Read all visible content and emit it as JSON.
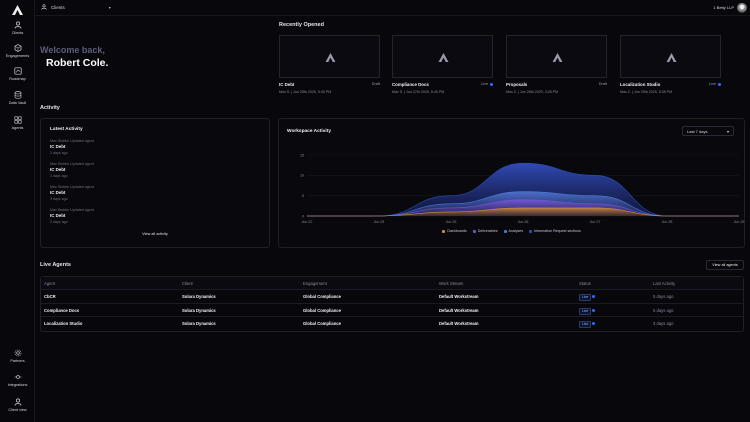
{
  "sidebar": {
    "items": [
      {
        "label": "Clients",
        "icon": "user-icon"
      },
      {
        "label": "Engagements",
        "icon": "hexagon-icon"
      },
      {
        "label": "Roadmap",
        "icon": "roadmap-icon"
      },
      {
        "label": "Data Vault",
        "icon": "database-icon"
      },
      {
        "label": "Agents",
        "icon": "grid-icon"
      }
    ],
    "bottom_items": [
      {
        "label": "Partners",
        "icon": "gear-icon"
      },
      {
        "label": "Integrations",
        "icon": "integration-icon"
      },
      {
        "label": "Client view",
        "icon": "user-icon"
      }
    ]
  },
  "topbar": {
    "client_select": "Clients",
    "user_name": "1 Betty LLP"
  },
  "welcome": {
    "greeting": "Welcome back,",
    "name": "Robert Cole."
  },
  "recent": {
    "title": "Recently Opened",
    "items": [
      {
        "name": "IC Debt",
        "status": "Draft",
        "date": "Max S. | Jun 25th 2025, 5:45 PM",
        "live": false
      },
      {
        "name": "Compliance Docs",
        "status": "Live",
        "date": "Max S. | Jun 27th 2025, 5:40 PM",
        "live": true
      },
      {
        "name": "Proposals",
        "status": "Draft",
        "date": "Max Z. | Jun 28th 2025, 3:28 PM",
        "live": false
      },
      {
        "name": "Localization Studio",
        "status": "Live",
        "date": "Max Z. | Jun 29th 2025, 5:38 PM",
        "live": true
      }
    ]
  },
  "activity_section": "Activity",
  "latest_activity": {
    "title": "Latest Activity",
    "items": [
      {
        "meta": "Max Stobbe Updated agent",
        "title": "IC Debt",
        "time": "3 days ago"
      },
      {
        "meta": "Max Stobbe Updated agent",
        "title": "IC Debt",
        "time": "3 days ago"
      },
      {
        "meta": "Max Stobbe Updated agent",
        "title": "IC Debt",
        "time": "3 days ago"
      },
      {
        "meta": "Max Stobbe Updated agent",
        "title": "IC Debt",
        "time": "3 days ago"
      }
    ],
    "view_all": "View all activity"
  },
  "workspace": {
    "title": "Workspace Activity",
    "range": "Last 7 days"
  },
  "chart_data": {
    "type": "area",
    "x": [
      "Jun 22",
      "Jun 24",
      "Jun 25",
      "Jun 26",
      "Jun 27",
      "Jun 28",
      "Jun 29"
    ],
    "ylim": [
      0,
      15
    ],
    "yticks": [
      0,
      5,
      10,
      15
    ],
    "series": [
      {
        "name": "Dashboards",
        "color": "#d08a3c",
        "values": [
          0,
          0,
          1,
          2,
          2,
          0,
          0
        ]
      },
      {
        "name": "Deliverables",
        "color": "#6a5acd",
        "values": [
          0,
          0,
          2,
          4,
          3,
          0,
          0
        ]
      },
      {
        "name": "Analyses",
        "color": "#4a78d8",
        "values": [
          0,
          0,
          3,
          6,
          5,
          0,
          0
        ]
      },
      {
        "name": "Information Request sections",
        "color": "#2b4fb0",
        "values": [
          0,
          0,
          5,
          13,
          10,
          0,
          0
        ]
      }
    ],
    "legend": "bottom"
  },
  "live_agents": {
    "title": "Live Agents",
    "view_all": "View all agents",
    "columns": [
      "Agent",
      "Client",
      "Engagement",
      "Work Stream",
      "Status",
      "Last Activity"
    ],
    "rows": [
      {
        "agent": "CbCR",
        "client": "Solara Dynamics",
        "engagement": "Global Compliance",
        "stream": "Default Workstream",
        "status": "Live",
        "last": "5 days ago"
      },
      {
        "agent": "Compliance Docs",
        "client": "Solara Dynamics",
        "engagement": "Global Compliance",
        "stream": "Default Workstream",
        "status": "Live",
        "last": "5 days ago"
      },
      {
        "agent": "Localization Studio",
        "client": "Solara Dynamics",
        "engagement": "Global Compliance",
        "stream": "Default Workstream",
        "status": "Live",
        "last": "3 days ago"
      }
    ]
  }
}
